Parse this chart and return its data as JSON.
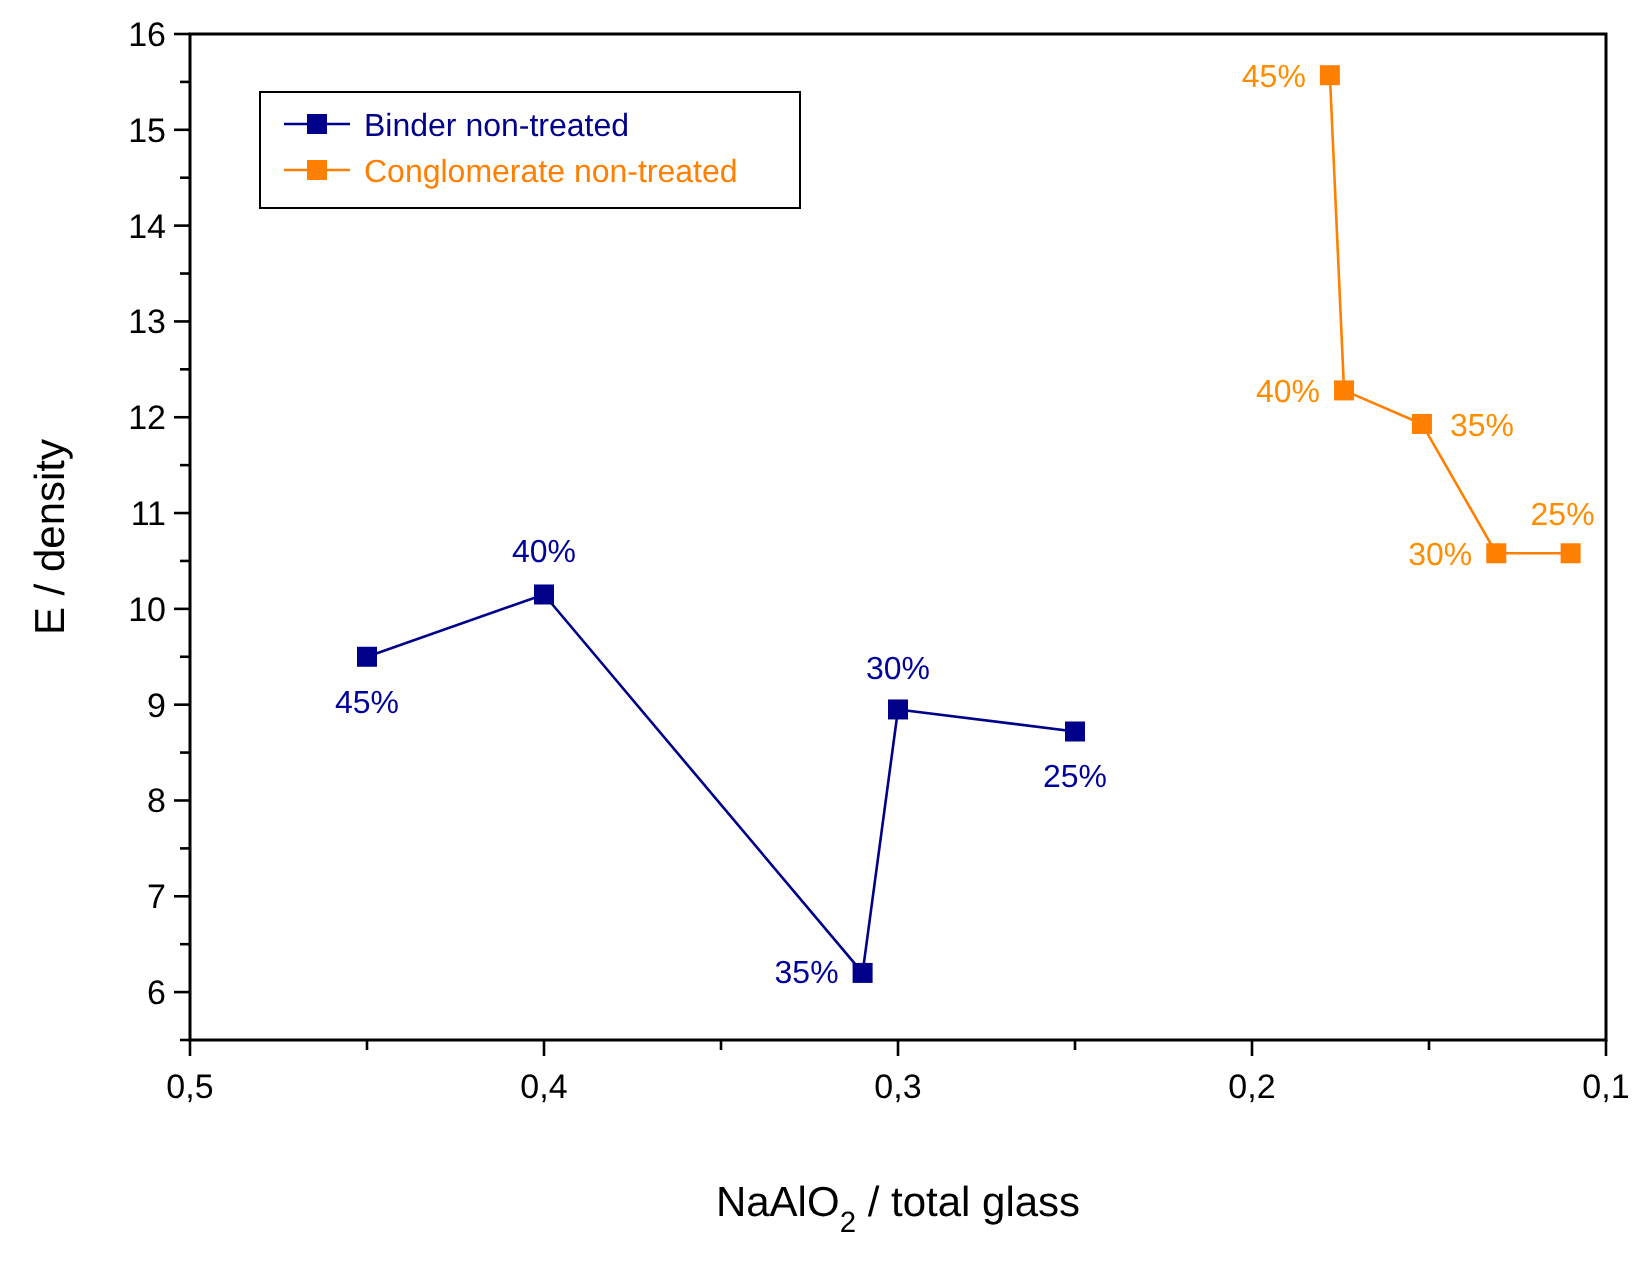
{
  "chart_data": {
    "type": "line",
    "xlabel": "NaAlO$_{2}$ / total glass",
    "ylabel": "E / density",
    "xlim": [
      0.5,
      0.1
    ],
    "ylim": [
      5.5,
      16
    ],
    "xticks": [
      {
        "value": 0.5,
        "label": "0,5"
      },
      {
        "value": 0.45,
        "label": null
      },
      {
        "value": 0.4,
        "label": "0,4"
      },
      {
        "value": 0.35,
        "label": null
      },
      {
        "value": 0.3,
        "label": "0,3"
      },
      {
        "value": 0.25,
        "label": null
      },
      {
        "value": 0.2,
        "label": "0,2"
      },
      {
        "value": 0.15,
        "label": null
      },
      {
        "value": 0.1,
        "label": "0,1"
      }
    ],
    "yticks": [
      {
        "value": 5.5,
        "label": null
      },
      6,
      {
        "value": 6.5,
        "label": null
      },
      7,
      {
        "value": 7.5,
        "label": null
      },
      8,
      {
        "value": 8.5,
        "label": null
      },
      9,
      {
        "value": 9.5,
        "label": null
      },
      10,
      {
        "value": 10.5,
        "label": null
      },
      11,
      {
        "value": 11.5,
        "label": null
      },
      12,
      {
        "value": 12.5,
        "label": null
      },
      13,
      {
        "value": 13.5,
        "label": null
      },
      14,
      {
        "value": 14.5,
        "label": null
      },
      15,
      {
        "value": 15.5,
        "label": null
      },
      16
    ],
    "series": [
      {
        "name": "Binder non-treated",
        "color": "#00008b",
        "x": [
          0.45,
          0.4,
          0.31,
          0.3,
          0.25
        ],
        "values": [
          9.5,
          10.15,
          6.2,
          8.95,
          8.72
        ]
      },
      {
        "name": "Conglomerate non-treated",
        "color": "#ff7f00",
        "x": [
          0.178,
          0.174,
          0.152,
          0.131,
          0.11
        ],
        "values": [
          15.57,
          12.28,
          11.93,
          10.58,
          10.58
        ]
      }
    ],
    "marker": "square",
    "line_style": "solid",
    "legend": "top left",
    "grid": false,
    "annotations": [
      {
        "text": "45%",
        "x": 0.45,
        "y": 9.5
      },
      {
        "text": "40%",
        "x": 0.4,
        "y": 10.15
      },
      {
        "text": "35%",
        "x": 0.31,
        "y": 6.2
      },
      {
        "text": "30%",
        "x": 0.3,
        "y": 8.95
      },
      {
        "text": "25%",
        "x": 0.25,
        "y": 8.72
      },
      {
        "text": "45%",
        "x": 0.178,
        "y": 15.57
      },
      {
        "text": "40%",
        "x": 0.174,
        "y": 12.28
      },
      {
        "text": "35%",
        "x": 0.152,
        "y": 11.93
      },
      {
        "text": "30%",
        "x": 0.131,
        "y": 10.58
      },
      {
        "text": "25%",
        "x": 0.11,
        "y": 10.58
      }
    ]
  }
}
